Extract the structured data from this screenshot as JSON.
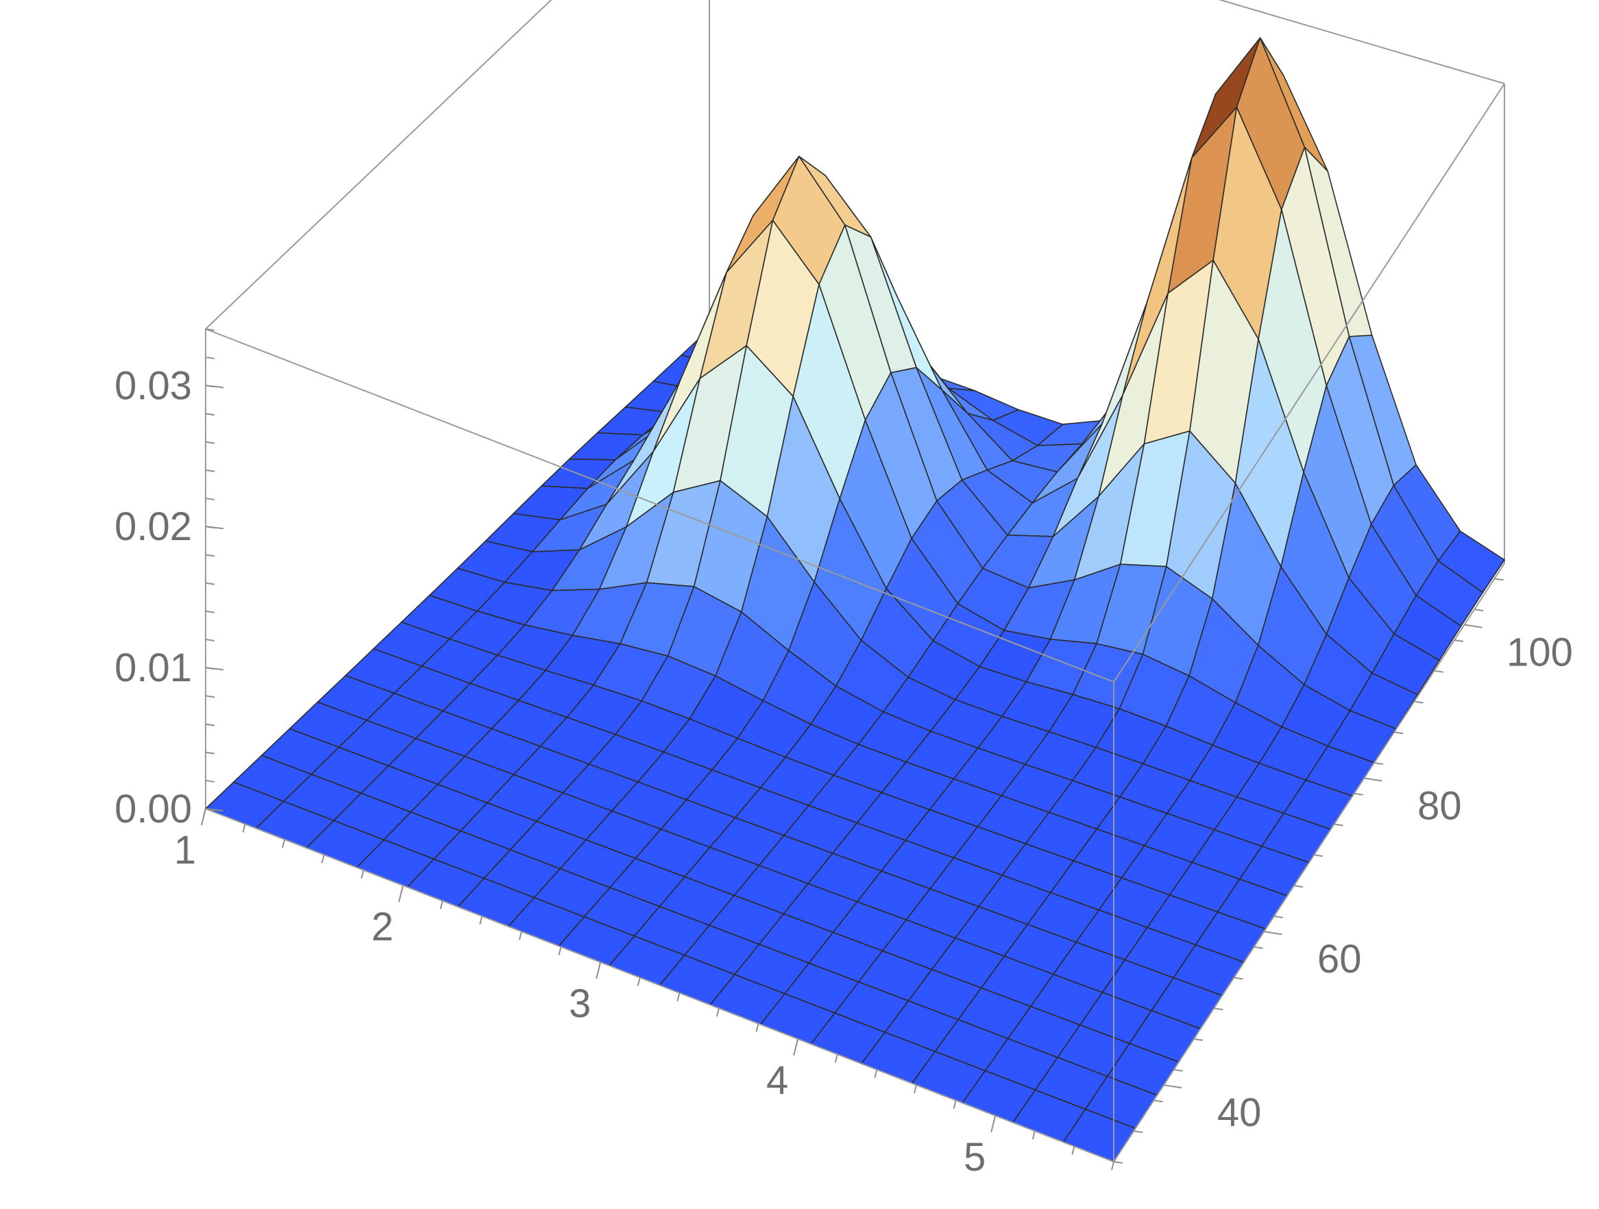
{
  "chart_data": {
    "type": "surface",
    "title": "",
    "xlabel": "",
    "ylabel": "",
    "zlabel": "",
    "x_ticks": [
      "1",
      "2",
      "3",
      "4",
      "5"
    ],
    "y_ticks": [
      "40",
      "60",
      "80",
      "100"
    ],
    "z_ticks": [
      "0.00",
      "0.01",
      "0.02",
      "0.03"
    ],
    "xlim": [
      1,
      5.6
    ],
    "ylim": [
      30,
      108
    ],
    "zlim": [
      0,
      0.034
    ],
    "grid_samples": {
      "x_count": 18,
      "y_count": 18
    },
    "peaks": [
      {
        "x": 2.3,
        "y": 86,
        "height": 0.027
      },
      {
        "x": 4.3,
        "y": 103,
        "height": 0.035
      }
    ],
    "colors": {
      "base": "#2f55ff",
      "mesh": "#2b2b2b",
      "box": "#9a9a9a",
      "peak_high": "#7a2e0e"
    }
  }
}
